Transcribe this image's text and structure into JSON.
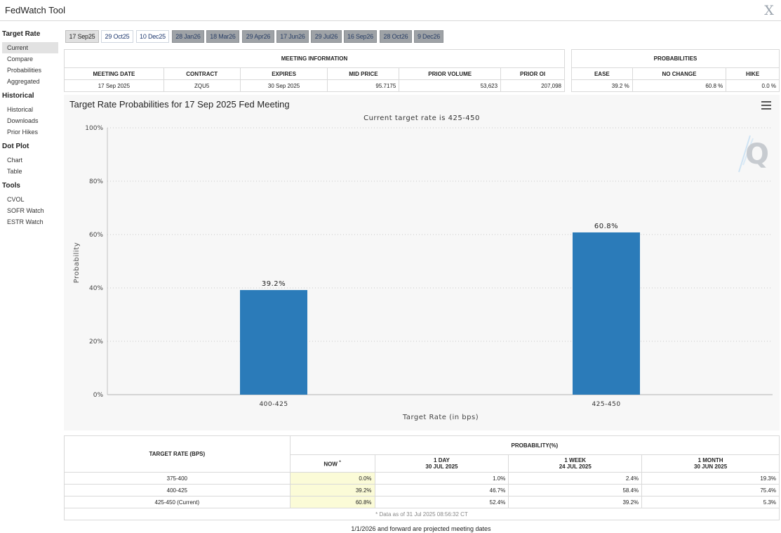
{
  "app": {
    "title": "FedWatch Tool",
    "close_glyph": "X"
  },
  "sidebar": {
    "sections": [
      {
        "title": "Target Rate",
        "items": [
          "Current",
          "Compare",
          "Probabilities",
          "Aggregated"
        ]
      },
      {
        "title": "Historical",
        "items": [
          "Historical",
          "Downloads",
          "Prior Hikes"
        ]
      },
      {
        "title": "Dot Plot",
        "items": [
          "Chart",
          "Table"
        ]
      },
      {
        "title": "Tools",
        "items": [
          "CVOL",
          "SOFR Watch",
          "ESTR Watch"
        ]
      }
    ],
    "active_item": "Current"
  },
  "tabs": [
    "17 Sep25",
    "29 Oct25",
    "10 Dec25",
    "28 Jan26",
    "18 Mar26",
    "29 Apr26",
    "17 Jun26",
    "29 Jul26",
    "16 Sep26",
    "28 Oct26",
    "9 Dec26"
  ],
  "meeting_info": {
    "title": "MEETING INFORMATION",
    "headers": [
      "MEETING DATE",
      "CONTRACT",
      "EXPIRES",
      "MID PRICE",
      "PRIOR VOLUME",
      "PRIOR OI"
    ],
    "values": [
      "17 Sep 2025",
      "ZQU5",
      "30 Sep 2025",
      "95.7175",
      "53,623",
      "207,098"
    ]
  },
  "probabilities": {
    "title": "PROBABILITIES",
    "headers": [
      "EASE",
      "NO CHANGE",
      "HIKE"
    ],
    "values": [
      "39.2 %",
      "60.8 %",
      "0.0 %"
    ]
  },
  "chart": {
    "title": "Target Rate Probabilities for 17 Sep 2025 Fed Meeting",
    "subtitle": "Current target rate is 425-450",
    "watermark": "Q"
  },
  "chart_data": {
    "type": "bar",
    "categories": [
      "400-425",
      "425-450"
    ],
    "values": [
      39.2,
      60.8
    ],
    "data_labels": [
      "39.2%",
      "60.8%"
    ],
    "title": "Target Rate Probabilities for 17 Sep 2025 Fed Meeting",
    "subtitle": "Current target rate is 425-450",
    "xlabel": "Target Rate (in bps)",
    "ylabel": "Probability",
    "ylim": [
      0,
      100
    ],
    "yticks": [
      "0%",
      "20%",
      "40%",
      "60%",
      "80%",
      "100%"
    ],
    "ytick_values": [
      0,
      20,
      40,
      60,
      80,
      100
    ],
    "grid": true,
    "bar_color": "#2b7bb9"
  },
  "prob_table": {
    "col_header": "TARGET RATE (BPS)",
    "group_header": "PROBABILITY(%)",
    "now_label": "NOW",
    "now_marker": "*",
    "periods": [
      {
        "label": "1 DAY",
        "date": "30 JUL 2025"
      },
      {
        "label": "1 WEEK",
        "date": "24 JUL 2025"
      },
      {
        "label": "1 MONTH",
        "date": "30 JUN 2025"
      }
    ],
    "rows": [
      {
        "rate": "375-400",
        "now": "0.0%",
        "day": "1.0%",
        "week": "2.4%",
        "month": "19.3%"
      },
      {
        "rate": "400-425",
        "now": "39.2%",
        "day": "46.7%",
        "week": "58.4%",
        "month": "75.4%"
      },
      {
        "rate": "425-450 (Current)",
        "now": "60.8%",
        "day": "52.4%",
        "week": "39.2%",
        "month": "5.3%"
      }
    ],
    "footnote": "* Data as of 31 Jul 2025 08:56:32 CT"
  },
  "footer_note": "1/1/2026 and forward are projected meeting dates"
}
